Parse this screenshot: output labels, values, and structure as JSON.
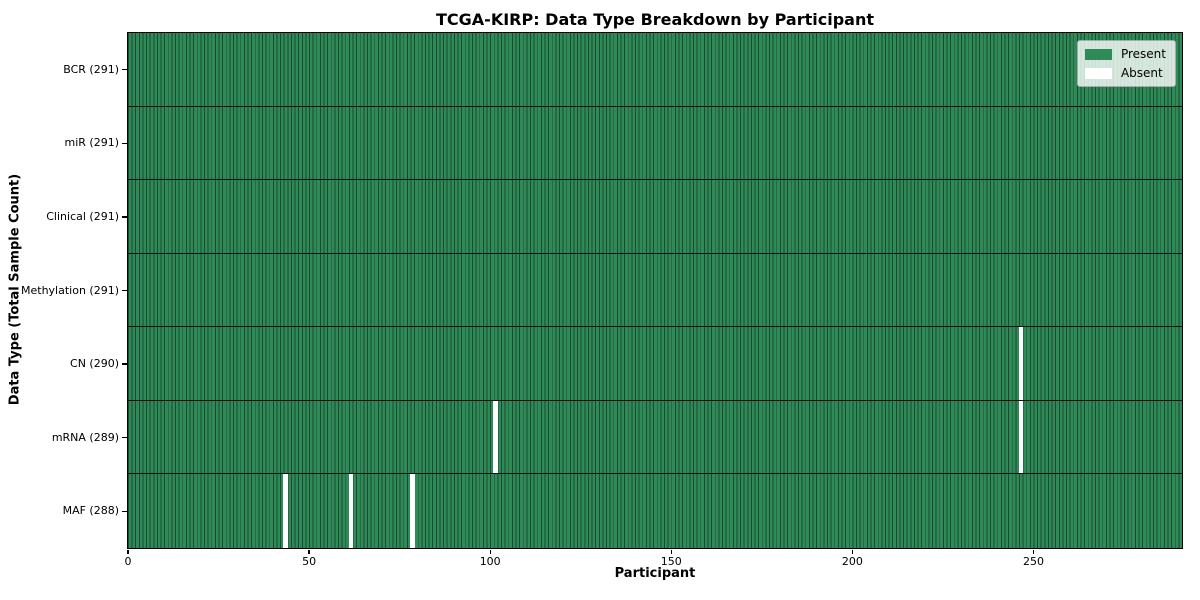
{
  "chart_data": {
    "type": "heatmap",
    "title": "TCGA-KIRP: Data Type Breakdown by Participant",
    "xlabel": "Participant",
    "ylabel": "Data Type (Total Sample Count)",
    "n_participants": 291,
    "xlim": [
      0,
      291
    ],
    "x_ticks": [
      0,
      50,
      100,
      150,
      200,
      250
    ],
    "grid": "per-cell edges, horizontal row dividers",
    "rows": [
      {
        "data_type": "BCR",
        "label": "BCR (291)",
        "count": 291,
        "absent_participants": []
      },
      {
        "data_type": "miR",
        "label": "miR (291)",
        "count": 291,
        "absent_participants": []
      },
      {
        "data_type": "Clinical",
        "label": "Clinical (291)",
        "count": 291,
        "absent_participants": []
      },
      {
        "data_type": "Methylation",
        "label": "Methylation (291)",
        "count": 291,
        "absent_participants": []
      },
      {
        "data_type": "CN",
        "label": "CN (290)",
        "count": 290,
        "absent_participants": [
          246
        ]
      },
      {
        "data_type": "mRNA",
        "label": "mRNA (289)",
        "count": 289,
        "absent_participants": [
          101,
          246
        ]
      },
      {
        "data_type": "MAF",
        "label": "MAF (288)",
        "count": 288,
        "absent_participants": [
          43,
          61,
          78
        ]
      }
    ],
    "legend": {
      "position": "upper right",
      "items": [
        {
          "label": "Present",
          "color": "#2e8b57"
        },
        {
          "label": "Absent",
          "color": "#ffffff"
        }
      ]
    },
    "colors": {
      "present": "#2e8b57",
      "absent": "#ffffff",
      "cell_edge": "#1b4a31",
      "row_divider": "#111111",
      "spine": "#000000"
    }
  }
}
